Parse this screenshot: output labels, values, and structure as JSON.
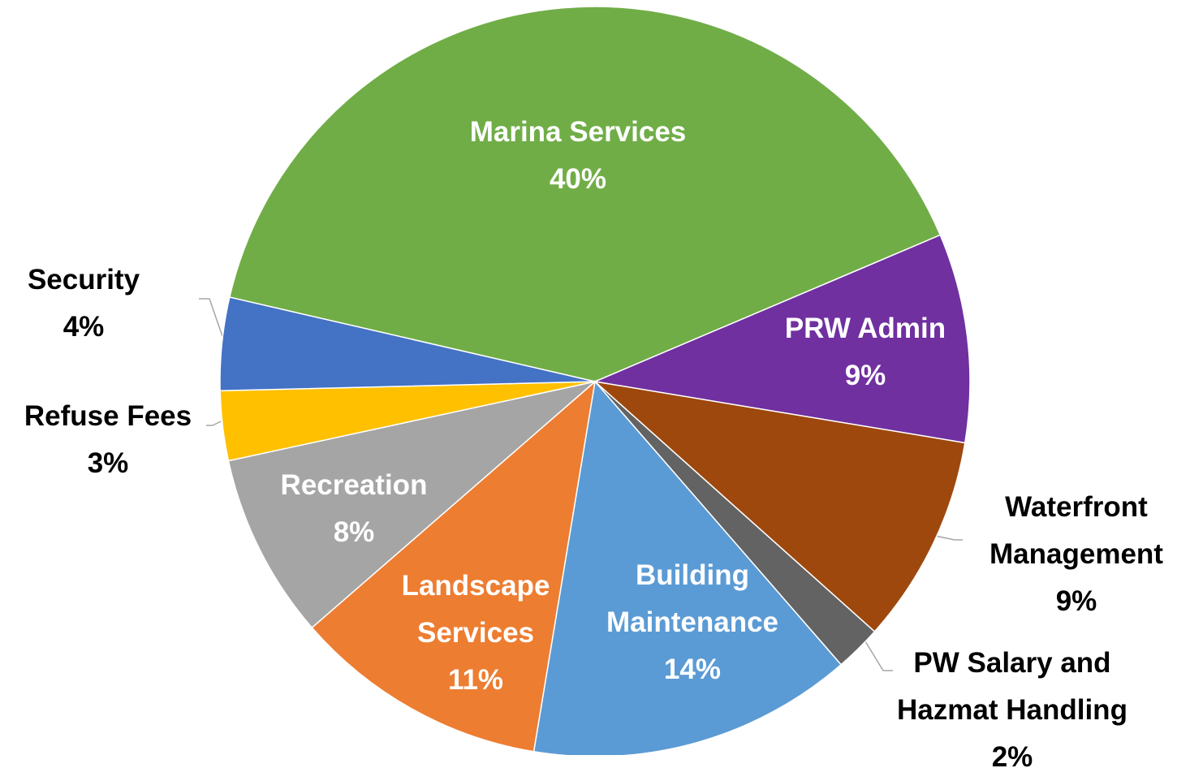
{
  "chart_data": {
    "type": "pie",
    "categories": [
      "Marina Services",
      "PRW Admin",
      "Waterfront Management",
      "PW Salary and Hazmat Handling",
      "Building Maintenance",
      "Landscape Services",
      "Recreation",
      "Refuse Fees",
      "Security"
    ],
    "values": [
      40,
      9,
      9,
      2,
      14,
      11,
      8,
      3,
      4
    ],
    "value_labels": [
      "40%",
      "9%",
      "9%",
      "2%",
      "14%",
      "11%",
      "8%",
      "3%",
      "4%"
    ],
    "colors": [
      "#70ad47",
      "#7030a0",
      "#9e480e",
      "#636363",
      "#5b9bd5",
      "#ed7d31",
      "#a5a5a5",
      "#ffc000",
      "#4472c4"
    ]
  }
}
